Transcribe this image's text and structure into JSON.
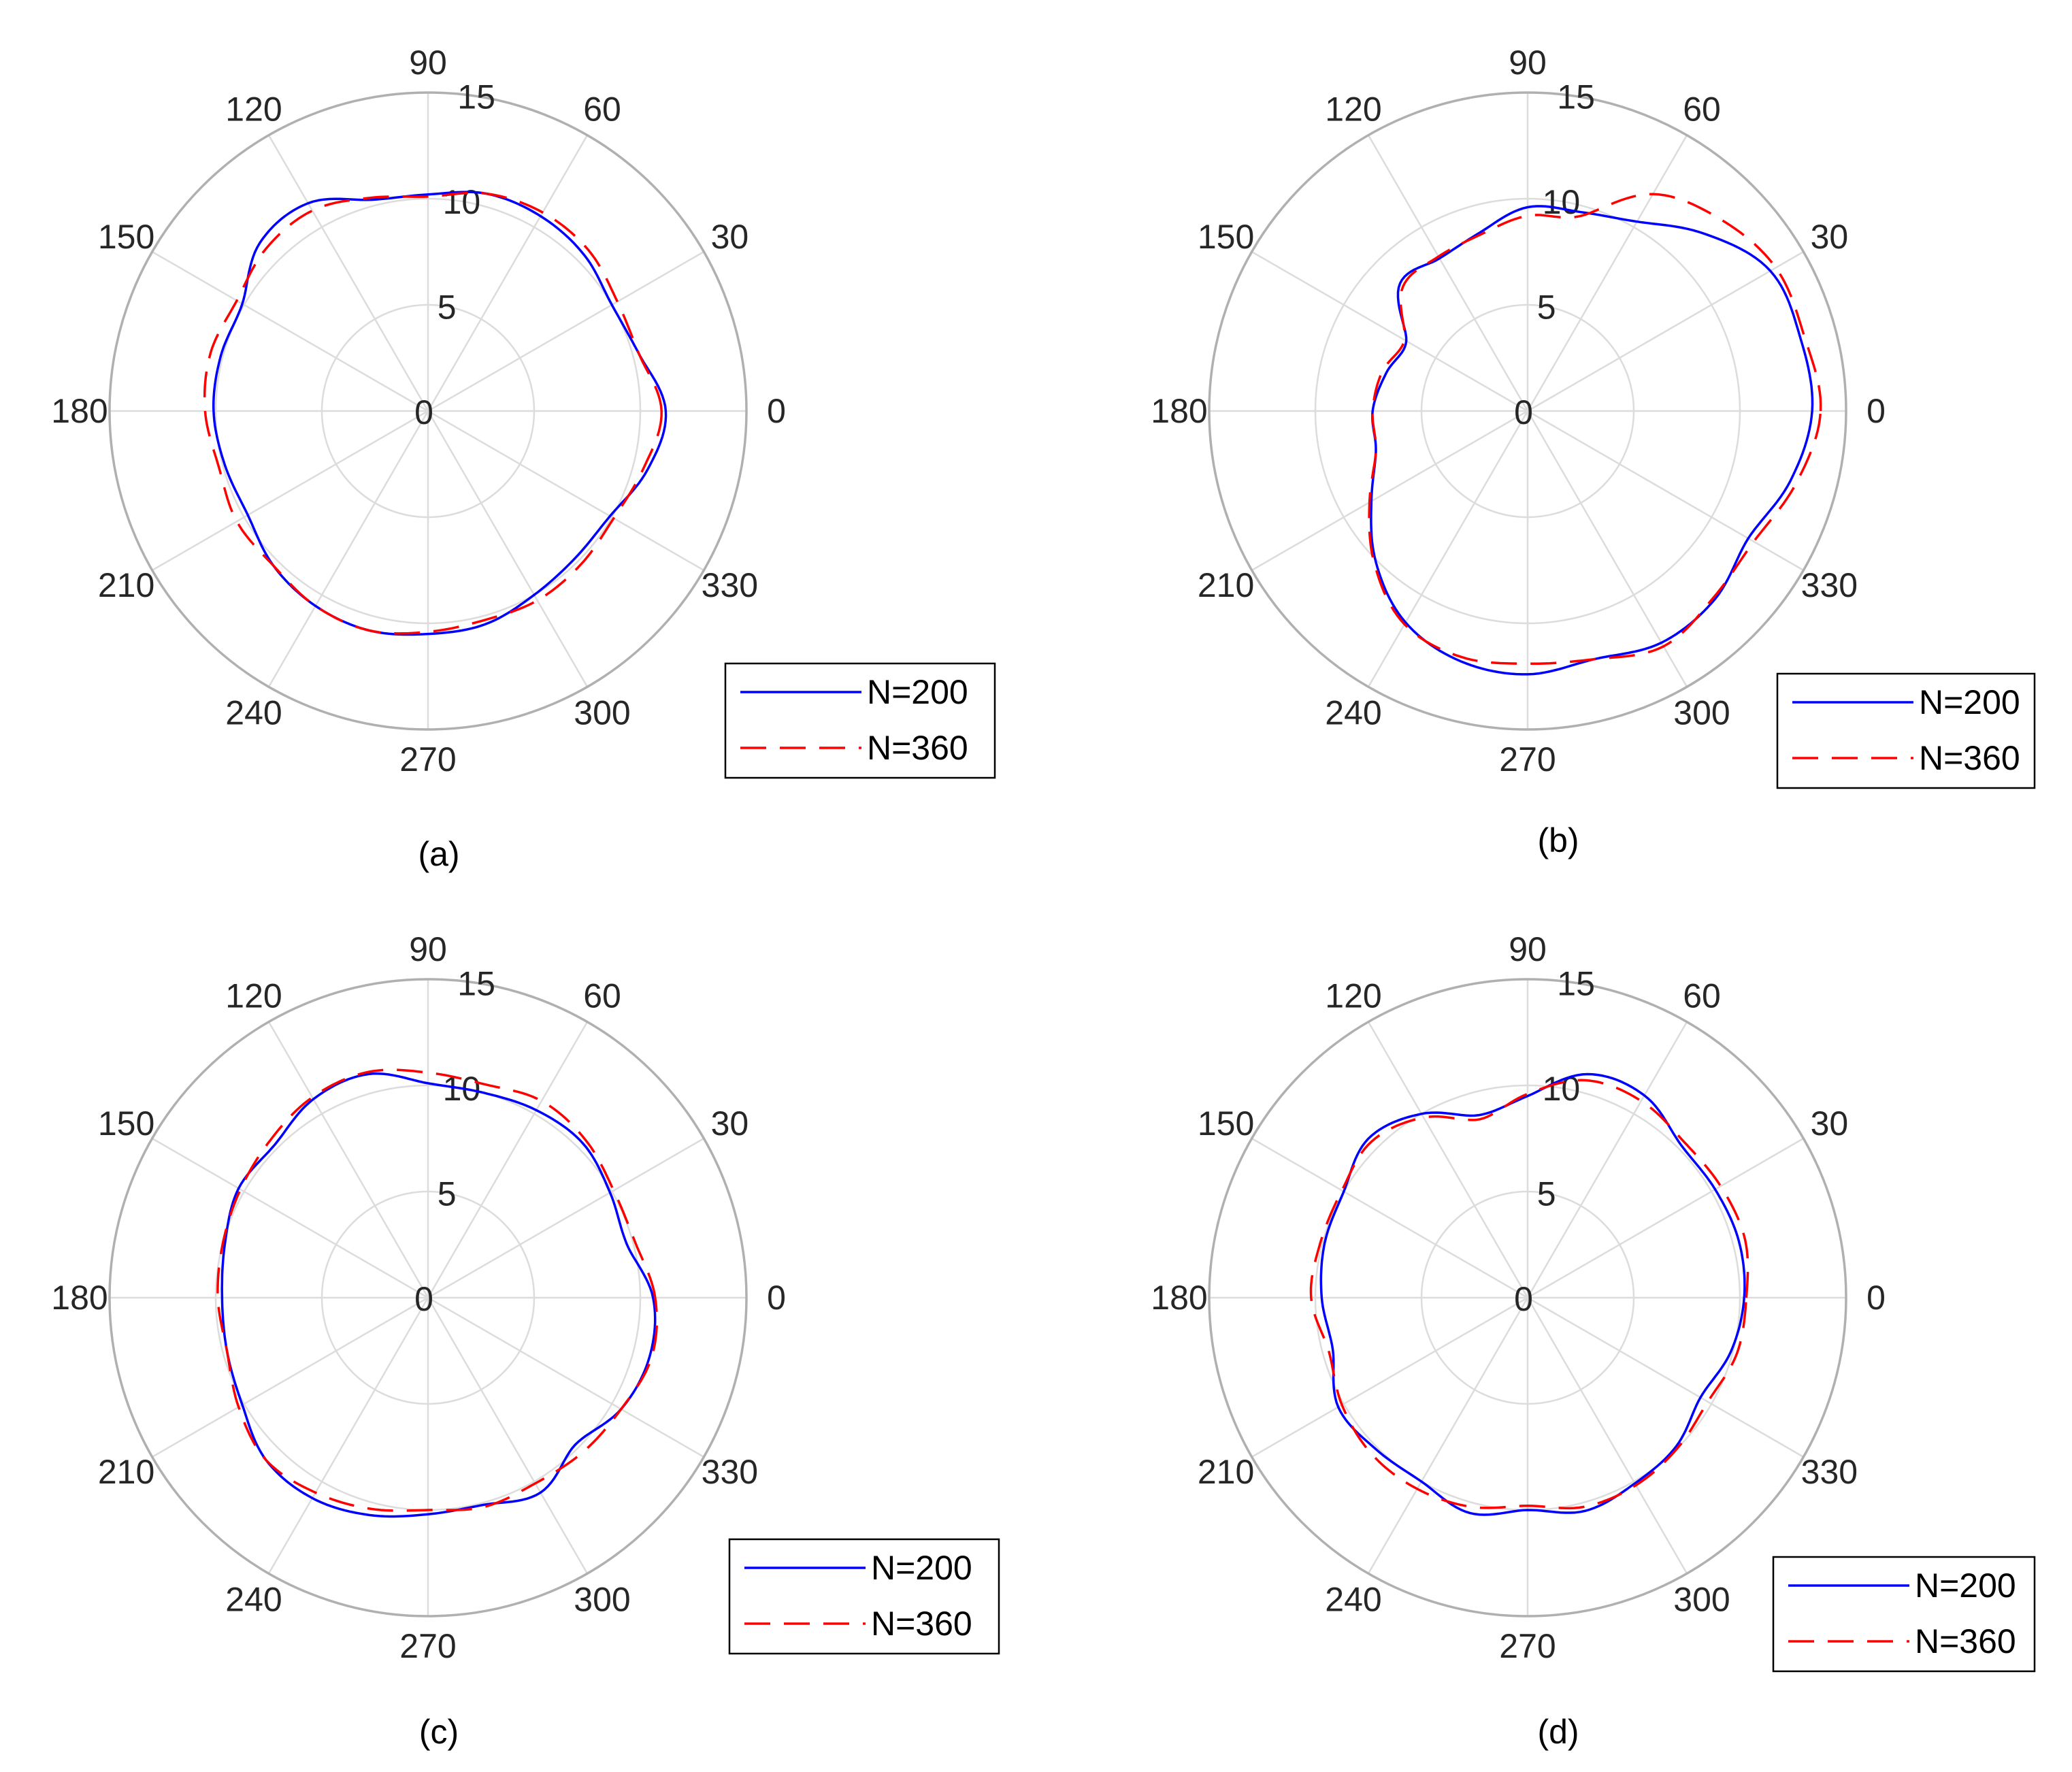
{
  "colors": {
    "background": "#ffffff",
    "grid": "#dcdcdc",
    "outer_ring": "#b0b0b0",
    "tick_text": "#262626",
    "series_n200": "#0000ff",
    "series_n360": "#ff0000",
    "legend_border": "#000000"
  },
  "chart_data": [
    {
      "type": "polar-line",
      "caption": "(a)",
      "theta_ticks": [
        "0",
        "30",
        "60",
        "90",
        "120",
        "150",
        "180",
        "210",
        "240",
        "270",
        "300",
        "330"
      ],
      "r_ticks": [
        "0",
        "5",
        "10",
        "15"
      ],
      "rlim": [
        0,
        15
      ],
      "grid": true,
      "legend_position": "bottom-right",
      "series": [
        {
          "name": "N=200",
          "line_style": "solid",
          "color": "#0000ff",
          "theta_deg": [
            0,
            15,
            30,
            45,
            60,
            75,
            90,
            105,
            120,
            135,
            150,
            165,
            180,
            195,
            210,
            225,
            240,
            255,
            270,
            285,
            300,
            315,
            330,
            345
          ],
          "r": [
            11.2,
            10.3,
            10.0,
            10.4,
            10.6,
            10.6,
            10.2,
            10.3,
            11.3,
            11.2,
            10.1,
            10.1,
            10.1,
            9.9,
            9.8,
            10.3,
            10.6,
            10.7,
            10.5,
            10.4,
            10.0,
            9.8,
            9.9,
            10.7
          ]
        },
        {
          "name": "N=360",
          "line_style": "dashed",
          "color": "#ff0000",
          "theta_deg": [
            0,
            15,
            30,
            45,
            60,
            75,
            90,
            105,
            120,
            135,
            150,
            165,
            180,
            195,
            210,
            225,
            240,
            255,
            270,
            285,
            300,
            315,
            330,
            345
          ],
          "r": [
            11.0,
            10.3,
            10.3,
            10.7,
            10.8,
            10.6,
            10.1,
            10.4,
            10.9,
            10.8,
            10.4,
            10.6,
            10.5,
            10.2,
            10.4,
            10.3,
            10.6,
            10.7,
            10.4,
            10.2,
            10.3,
            10.2,
            10.1,
            10.5
          ]
        }
      ]
    },
    {
      "type": "polar-line",
      "caption": "(b)",
      "theta_ticks": [
        "0",
        "30",
        "60",
        "90",
        "120",
        "150",
        "180",
        "210",
        "240",
        "270",
        "300",
        "330"
      ],
      "r_ticks": [
        "0",
        "5",
        "10",
        "15"
      ],
      "rlim": [
        0,
        15
      ],
      "grid": true,
      "legend_position": "bottom-right",
      "series": [
        {
          "name": "N=200",
          "line_style": "solid",
          "color": "#0000ff",
          "theta_deg": [
            0,
            15,
            30,
            45,
            60,
            75,
            90,
            105,
            120,
            135,
            150,
            165,
            180,
            195,
            210,
            225,
            240,
            255,
            270,
            285,
            300,
            315,
            330,
            345
          ],
          "r": [
            13.4,
            13.3,
            13.2,
            11.8,
            10.3,
            9.7,
            9.6,
            8.7,
            8.3,
            8.5,
            6.6,
            6.9,
            7.3,
            7.4,
            8.5,
            10.1,
            11.5,
            12.2,
            12.4,
            12.1,
            12.6,
            12.5,
            12.0,
            12.8
          ]
        },
        {
          "name": "N=360",
          "line_style": "dashed",
          "color": "#ff0000",
          "theta_deg": [
            0,
            15,
            30,
            45,
            60,
            75,
            90,
            105,
            120,
            135,
            150,
            165,
            180,
            195,
            210,
            225,
            240,
            255,
            270,
            285,
            300,
            315,
            330,
            345
          ],
          "r": [
            13.8,
            13.5,
            13.5,
            12.8,
            11.8,
            9.5,
            9.2,
            8.6,
            8.4,
            8.3,
            6.7,
            7.1,
            7.3,
            7.4,
            8.6,
            10.2,
            11.6,
            12.0,
            11.9,
            12.1,
            12.8,
            12.4,
            12.3,
            13.1
          ]
        }
      ]
    },
    {
      "type": "polar-line",
      "caption": "(c)",
      "theta_ticks": [
        "0",
        "30",
        "60",
        "90",
        "120",
        "150",
        "180",
        "210",
        "240",
        "270",
        "300",
        "330"
      ],
      "r_ticks": [
        "0",
        "5",
        "10",
        "15"
      ],
      "rlim": [
        0,
        15
      ],
      "grid": true,
      "legend_position": "bottom-right",
      "series": [
        {
          "name": "N=200",
          "line_style": "solid",
          "color": "#0000ff",
          "theta_deg": [
            0,
            15,
            30,
            45,
            60,
            75,
            90,
            105,
            120,
            135,
            150,
            165,
            180,
            195,
            210,
            225,
            240,
            255,
            270,
            285,
            300,
            315,
            330,
            345
          ],
          "r": [
            10.6,
            9.7,
            9.9,
            10.3,
            10.2,
            10.0,
            10.1,
            10.9,
            10.8,
            10.2,
            10.3,
            9.9,
            9.7,
            9.8,
            10.1,
            10.8,
            10.9,
            10.6,
            10.2,
            10.1,
            10.6,
            9.8,
            10.5,
            10.8
          ]
        },
        {
          "name": "N=360",
          "line_style": "dashed",
          "color": "#ff0000",
          "theta_deg": [
            0,
            15,
            30,
            45,
            60,
            75,
            90,
            105,
            120,
            135,
            150,
            165,
            180,
            195,
            210,
            225,
            240,
            255,
            270,
            285,
            300,
            315,
            330,
            345
          ],
          "r": [
            10.7,
            10.1,
            10.1,
            10.5,
            10.7,
            10.4,
            10.6,
            11.0,
            10.9,
            10.5,
            10.2,
            10.0,
            9.9,
            9.8,
            10.3,
            10.8,
            10.6,
            10.3,
            10.0,
            10.2,
            10.1,
            10.3,
            10.5,
            10.9
          ]
        }
      ]
    },
    {
      "type": "polar-line",
      "caption": "(d)",
      "theta_ticks": [
        "0",
        "30",
        "60",
        "90",
        "120",
        "150",
        "180",
        "210",
        "240",
        "270",
        "300",
        "330"
      ],
      "r_ticks": [
        "0",
        "5",
        "10",
        "15"
      ],
      "rlim": [
        0,
        15
      ],
      "grid": true,
      "legend_position": "bottom-right",
      "series": [
        {
          "name": "N=200",
          "line_style": "solid",
          "color": "#0000ff",
          "theta_deg": [
            0,
            15,
            30,
            45,
            60,
            75,
            90,
            105,
            120,
            135,
            150,
            165,
            180,
            195,
            210,
            225,
            240,
            255,
            270,
            285,
            300,
            315,
            330,
            345
          ],
          "r": [
            10.2,
            10.3,
            10.2,
            10.2,
            11.0,
            10.9,
            9.5,
            8.9,
            10.0,
            10.6,
            10.0,
            9.9,
            9.7,
            9.5,
            10.3,
            10.1,
            10.0,
            10.5,
            10.0,
            10.4,
            10.1,
            9.9,
            9.4,
            9.9
          ]
        },
        {
          "name": "N=360",
          "line_style": "dashed",
          "color": "#ff0000",
          "theta_deg": [
            0,
            15,
            30,
            45,
            60,
            75,
            90,
            105,
            120,
            135,
            150,
            165,
            180,
            195,
            210,
            225,
            240,
            255,
            270,
            285,
            300,
            315,
            330,
            345
          ],
          "r": [
            10.3,
            10.6,
            10.5,
            10.4,
            10.7,
            10.6,
            9.6,
            8.7,
            9.8,
            10.4,
            10.1,
            10.1,
            10.2,
            9.7,
            10.1,
            10.4,
            10.4,
            10.2,
            9.8,
            10.2,
            10.2,
            10.0,
            9.8,
            10.2
          ]
        }
      ]
    }
  ]
}
